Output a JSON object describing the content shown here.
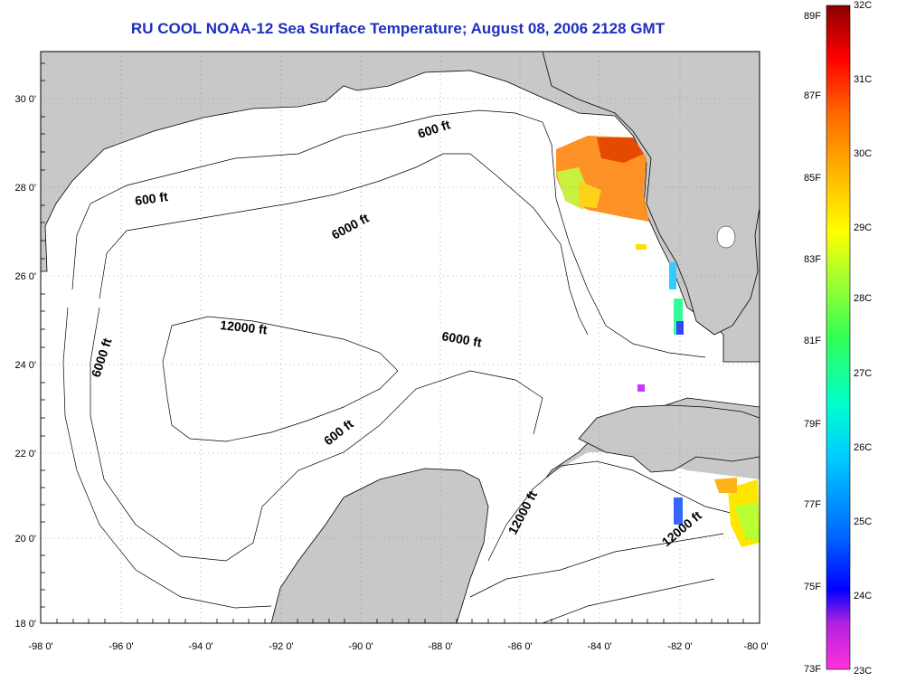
{
  "title": "RU COOL  NOAA-12  Sea Surface Temperature;  August 08, 2006 2128 GMT",
  "axes": {
    "x_ticks": [
      "-98 0'",
      "-96 0'",
      "-94 0'",
      "-92 0'",
      "-90 0'",
      "-88 0'",
      "-86 0'",
      "-84 0'",
      "-82 0'",
      "-80 0'"
    ],
    "y_ticks": [
      "30 0'",
      "28 0'",
      "26 0'",
      "24 0'",
      "22 0'",
      "20 0'",
      "18 0'"
    ]
  },
  "contour_labels": [
    "600 ft",
    "600 ft",
    "6000 ft",
    "12000 ft",
    "6000 ft",
    "6000 ft",
    "600 ft",
    "12000 ft",
    "12000 ft"
  ],
  "colorbar": {
    "fahrenheit": [
      "89F",
      "87F",
      "85F",
      "83F",
      "81F",
      "79F",
      "77F",
      "75F",
      "73F"
    ],
    "celsius": [
      "32C",
      "31C",
      "30C",
      "29C",
      "28C",
      "27C",
      "26C",
      "25C",
      "24C",
      "23C"
    ]
  },
  "colors": {
    "land": "#c8c8c8",
    "water": "#ffffff",
    "title": "#1f2fbf"
  }
}
